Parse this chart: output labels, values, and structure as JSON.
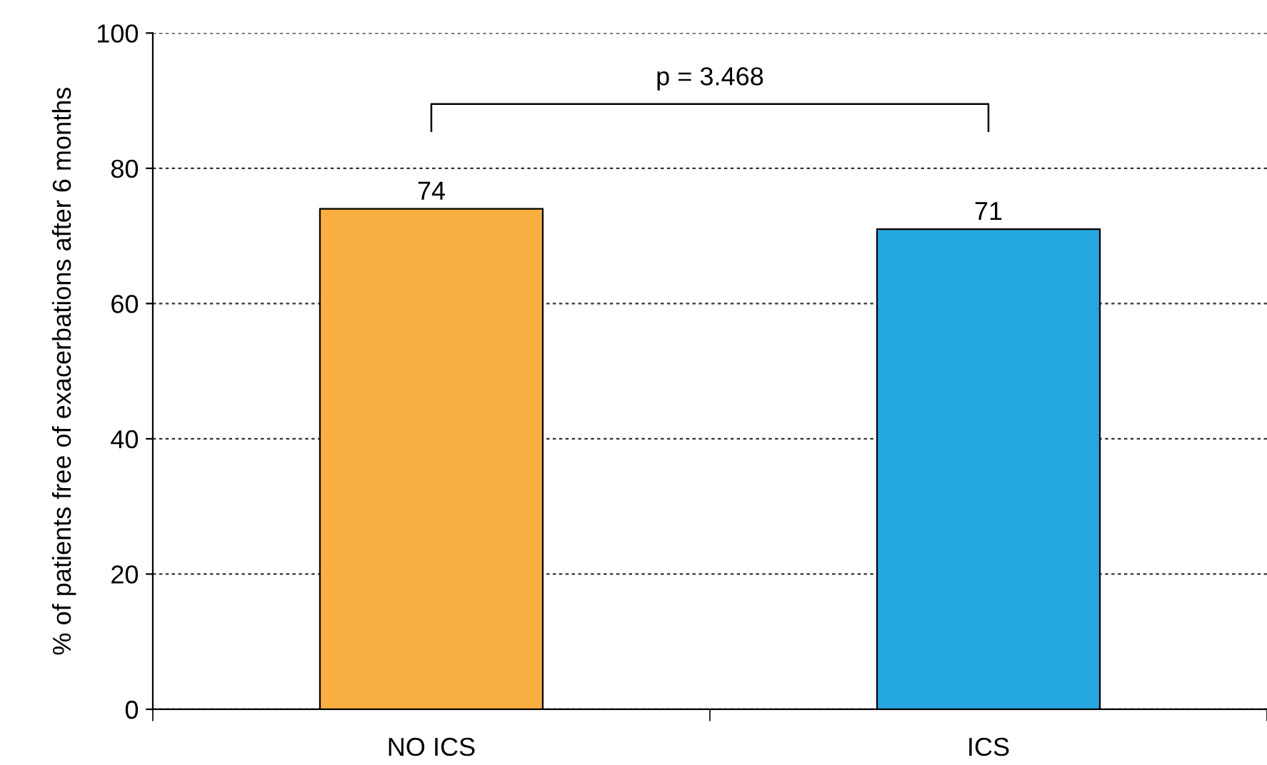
{
  "chart_data": {
    "type": "bar",
    "ylabel": "% of patients free of exacerbations after 6 months",
    "categories": [
      "NO ICS",
      "ICS"
    ],
    "values": [
      74,
      71
    ],
    "colors": [
      "#f9ae41",
      "#25a7df"
    ],
    "ylim": [
      0,
      100
    ],
    "yticks": [
      0,
      20,
      40,
      60,
      80,
      100
    ],
    "grid": "y",
    "data_labels": true,
    "annotations": [
      "p = 3.468"
    ]
  }
}
